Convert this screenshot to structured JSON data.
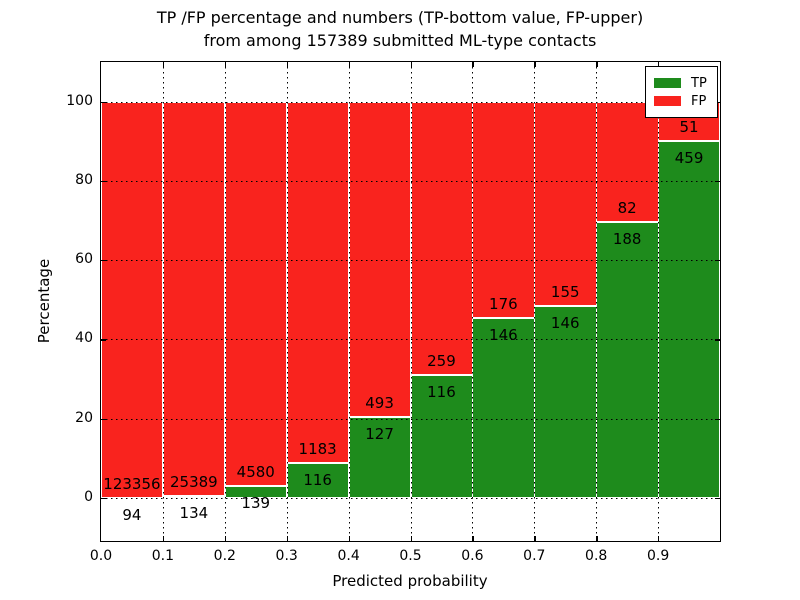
{
  "title": {
    "line1": "TP /FP percentage and numbers (TP-bottom value, FP-upper)",
    "line2": "from among 157389 submitted ML-type contacts"
  },
  "axes": {
    "x_label": "Predicted probability",
    "y_label": "Percentage",
    "x_tick_labels": [
      "0.0",
      "0.1",
      "0.2",
      "0.3",
      "0.4",
      "0.5",
      "0.6",
      "0.7",
      "0.8",
      "0.9"
    ],
    "y_tick_labels": [
      "0",
      "20",
      "40",
      "60",
      "80",
      "100"
    ],
    "y_tick_values": [
      0,
      20,
      40,
      60,
      80,
      100
    ]
  },
  "legend": {
    "items": [
      {
        "label": "TP",
        "color": "#1e8b1c"
      },
      {
        "label": "FP",
        "color": "#f9231e"
      }
    ]
  },
  "colors": {
    "tp_green": "#1e8b1c",
    "fp_red": "#f9231e",
    "bar_edge": "#ffffff",
    "grid": "#000000"
  },
  "chart_data": {
    "type": "bar",
    "stacked": true,
    "title": "TP /FP percentage and numbers (TP-bottom value, FP-upper) from among 157389 submitted ML-type contacts",
    "xlabel": "Predicted probability",
    "ylabel": "Percentage",
    "bin_start": [
      0.0,
      0.1,
      0.2,
      0.3,
      0.4,
      0.5,
      0.6,
      0.7,
      0.8,
      0.9
    ],
    "bin_width": 0.1,
    "xlim": [
      0,
      1
    ],
    "ylim": [
      -10.8,
      109.8
    ],
    "grid": true,
    "legend_position": "upper right",
    "series": [
      {
        "name": "TP",
        "counts": [
          94,
          134,
          139,
          116,
          127,
          116,
          146,
          146,
          188,
          459
        ],
        "pct": [
          0.08,
          0.52,
          2.95,
          8.93,
          20.48,
          30.93,
          45.34,
          48.5,
          69.63,
          90.0
        ]
      },
      {
        "name": "FP",
        "counts": [
          123356,
          25389,
          4580,
          1183,
          493,
          259,
          176,
          155,
          82,
          51
        ],
        "pct": [
          99.92,
          99.48,
          97.05,
          91.07,
          79.52,
          69.07,
          54.66,
          51.5,
          30.37,
          10.0
        ]
      }
    ],
    "total_submitted": 157389
  }
}
